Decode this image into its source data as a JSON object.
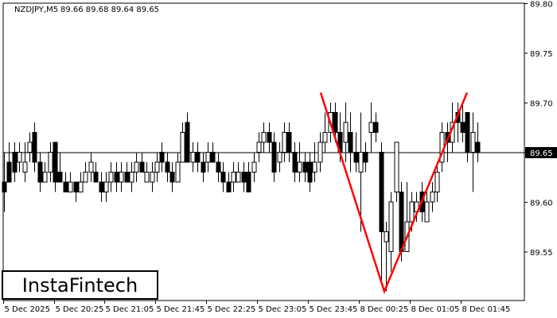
{
  "header": {
    "symbol": "NZDJPY,M5",
    "ohlc": "89.66 89.68 89.64 89.65"
  },
  "logo": {
    "text": "InstaFintech"
  },
  "price_marker": {
    "value": "89.65",
    "background": "#000000",
    "color": "#ffffff"
  },
  "colors": {
    "pattern_line": "#ff0000",
    "candle_bull": "#ffffff",
    "candle_bear": "#000000",
    "axis": "#000000"
  },
  "chart_data": {
    "type": "candlestick",
    "pattern": "double-top",
    "y_axis": {
      "ylim": [
        89.5,
        89.8
      ],
      "ticks": [
        "89.80",
        "89.75",
        "89.70",
        "89.65",
        "89.60",
        "89.55"
      ]
    },
    "x_axis": {
      "ticks": [
        "5 Dec 2025",
        "5 Dec 20:25",
        "5 Dec 21:05",
        "5 Dec 21:45",
        "5 Dec 22:25",
        "5 Dec 23:05",
        "5 Dec 23:45",
        "8 Dec 00:25",
        "8 Dec 01:05",
        "8 Dec 01:45"
      ]
    },
    "current_price": 89.65,
    "pattern_points": [
      {
        "label": "peak-1",
        "price": 89.71
      },
      {
        "label": "trough",
        "price": 89.51
      },
      {
        "label": "peak-2",
        "price": 89.71
      }
    ],
    "candles": [
      [
        89.62,
        89.61,
        89.65,
        89.59
      ],
      [
        89.64,
        89.62,
        89.66,
        89.62
      ],
      [
        89.65,
        89.63,
        89.66,
        89.62
      ],
      [
        89.64,
        89.65,
        89.66,
        89.63
      ],
      [
        89.63,
        89.64,
        89.66,
        89.62
      ],
      [
        89.65,
        89.66,
        89.67,
        89.64
      ],
      [
        89.67,
        89.64,
        89.68,
        89.63
      ],
      [
        89.64,
        89.62,
        89.65,
        89.61
      ],
      [
        89.62,
        89.63,
        89.64,
        89.62
      ],
      [
        89.63,
        89.65,
        89.66,
        89.62
      ],
      [
        89.66,
        89.62,
        89.66,
        89.61
      ],
      [
        89.63,
        89.62,
        89.65,
        89.62
      ],
      [
        89.62,
        89.61,
        89.63,
        89.61
      ],
      [
        89.61,
        89.62,
        89.63,
        89.61
      ],
      [
        89.62,
        89.61,
        89.62,
        89.6
      ],
      [
        89.61,
        89.62,
        89.63,
        89.61
      ],
      [
        89.62,
        89.63,
        89.64,
        89.62
      ],
      [
        89.63,
        89.64,
        89.65,
        89.62
      ],
      [
        89.63,
        89.62,
        89.64,
        89.62
      ],
      [
        89.62,
        89.61,
        89.63,
        89.6
      ],
      [
        89.61,
        89.62,
        89.63,
        89.6
      ],
      [
        89.62,
        89.63,
        89.64,
        89.61
      ],
      [
        89.63,
        89.62,
        89.64,
        89.61
      ],
      [
        89.62,
        89.63,
        89.64,
        89.61
      ],
      [
        89.63,
        89.62,
        89.64,
        89.62
      ],
      [
        89.62,
        89.63,
        89.64,
        89.61
      ],
      [
        89.63,
        89.64,
        89.65,
        89.62
      ],
      [
        89.64,
        89.63,
        89.65,
        89.63
      ],
      [
        89.62,
        89.63,
        89.64,
        89.62
      ],
      [
        89.62,
        89.63,
        89.64,
        89.61
      ],
      [
        89.63,
        89.64,
        89.65,
        89.62
      ],
      [
        89.65,
        89.64,
        89.66,
        89.63
      ],
      [
        89.64,
        89.63,
        89.65,
        89.62
      ],
      [
        89.63,
        89.62,
        89.64,
        89.61
      ],
      [
        89.62,
        89.64,
        89.65,
        89.62
      ],
      [
        89.64,
        89.67,
        89.68,
        89.64
      ],
      [
        89.68,
        89.64,
        89.69,
        89.64
      ],
      [
        89.64,
        89.65,
        89.66,
        89.63
      ],
      [
        89.65,
        89.64,
        89.66,
        89.63
      ],
      [
        89.64,
        89.63,
        89.65,
        89.62
      ],
      [
        89.64,
        89.65,
        89.66,
        89.63
      ],
      [
        89.65,
        89.64,
        89.66,
        89.64
      ],
      [
        89.64,
        89.63,
        89.65,
        89.62
      ],
      [
        89.63,
        89.62,
        89.64,
        89.61
      ],
      [
        89.62,
        89.61,
        89.63,
        89.61
      ],
      [
        89.62,
        89.63,
        89.64,
        89.61
      ],
      [
        89.62,
        89.63,
        89.64,
        89.62
      ],
      [
        89.63,
        89.62,
        89.64,
        89.61
      ],
      [
        89.63,
        89.61,
        89.64,
        89.61
      ],
      [
        89.63,
        89.64,
        89.65,
        89.62
      ],
      [
        89.65,
        89.66,
        89.67,
        89.64
      ],
      [
        89.66,
        89.67,
        89.68,
        89.65
      ],
      [
        89.67,
        89.66,
        89.68,
        89.65
      ],
      [
        89.66,
        89.63,
        89.67,
        89.62
      ],
      [
        89.64,
        89.65,
        89.66,
        89.63
      ],
      [
        89.65,
        89.67,
        89.68,
        89.64
      ],
      [
        89.67,
        89.65,
        89.68,
        89.64
      ],
      [
        89.65,
        89.63,
        89.66,
        89.62
      ],
      [
        89.63,
        89.64,
        89.66,
        89.62
      ],
      [
        89.64,
        89.63,
        89.65,
        89.62
      ],
      [
        89.64,
        89.62,
        89.65,
        89.61
      ],
      [
        89.63,
        89.64,
        89.66,
        89.62
      ],
      [
        89.64,
        89.66,
        89.67,
        89.63
      ],
      [
        89.66,
        89.67,
        89.69,
        89.65
      ],
      [
        89.67,
        89.69,
        89.7,
        89.66
      ],
      [
        89.69,
        89.67,
        89.7,
        89.66
      ],
      [
        89.67,
        89.65,
        89.69,
        89.64
      ],
      [
        89.66,
        89.68,
        89.7,
        89.64
      ],
      [
        89.67,
        89.65,
        89.69,
        89.63
      ],
      [
        89.65,
        89.64,
        89.67,
        89.63
      ],
      [
        89.63,
        89.65,
        89.69,
        89.57
      ],
      [
        89.65,
        89.64,
        89.66,
        89.63
      ],
      [
        89.67,
        89.68,
        89.7,
        89.65
      ],
      [
        89.68,
        89.67,
        89.69,
        89.66
      ],
      [
        89.65,
        89.57,
        89.66,
        89.52
      ],
      [
        89.56,
        89.57,
        89.58,
        89.51
      ],
      [
        89.55,
        89.6,
        89.61,
        89.53
      ],
      [
        89.61,
        89.66,
        89.66,
        89.6
      ],
      [
        89.61,
        89.55,
        89.62,
        89.54
      ],
      [
        89.55,
        89.58,
        89.62,
        89.55
      ],
      [
        89.58,
        89.6,
        89.61,
        89.57
      ],
      [
        89.59,
        89.6,
        89.61,
        89.58
      ],
      [
        89.61,
        89.59,
        89.62,
        89.58
      ],
      [
        89.58,
        89.6,
        89.61,
        89.58
      ],
      [
        89.6,
        89.61,
        89.62,
        89.59
      ],
      [
        89.61,
        89.63,
        89.64,
        89.6
      ],
      [
        89.64,
        89.67,
        89.68,
        89.63
      ],
      [
        89.67,
        89.66,
        89.68,
        89.64
      ],
      [
        89.66,
        89.68,
        89.7,
        89.65
      ],
      [
        89.69,
        89.68,
        89.7,
        89.66
      ],
      [
        89.68,
        89.67,
        89.7,
        89.66
      ],
      [
        89.69,
        89.65,
        89.69,
        89.64
      ],
      [
        89.65,
        89.67,
        89.69,
        89.61
      ],
      [
        89.66,
        89.65,
        89.68,
        89.64
      ]
    ]
  }
}
